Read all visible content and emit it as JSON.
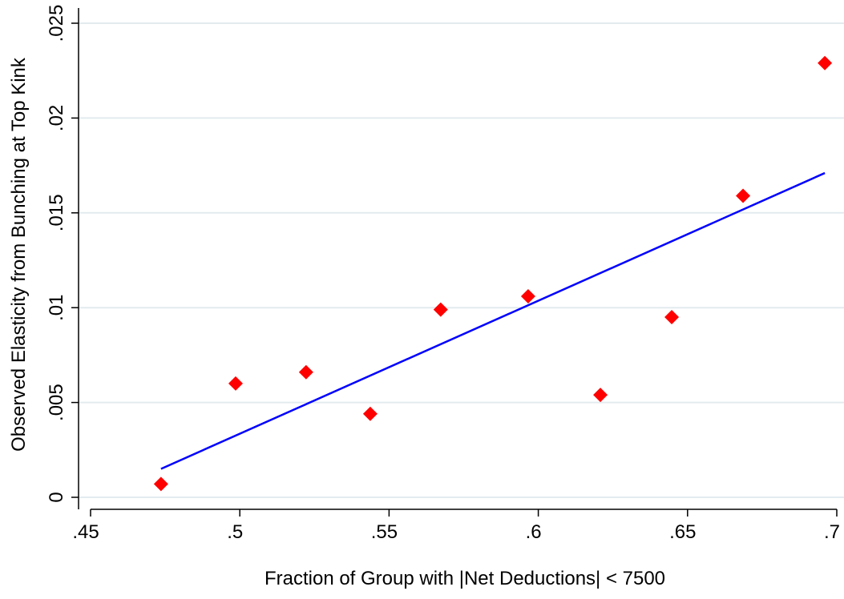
{
  "chart_data": {
    "type": "scatter",
    "x_label": "Fraction of Group with |Net Deductions| < 7500",
    "y_label": "Observed Elasticity from Bunching at Top Kink",
    "xlim": [
      0.45,
      0.7
    ],
    "xticks": [
      {
        "value": 0.45,
        "label": ".45"
      },
      {
        "value": 0.5,
        "label": ".5"
      },
      {
        "value": 0.55,
        "label": ".55"
      },
      {
        "value": 0.6,
        "label": ".6"
      },
      {
        "value": 0.65,
        "label": ".65"
      },
      {
        "value": 0.7,
        "label": ".7"
      }
    ],
    "ylim": [
      0,
      0.025
    ],
    "yticks": [
      0,
      {
        "value": 0.005,
        "label": ".005"
      },
      {
        "value": 0.01,
        "label": ".01"
      },
      {
        "value": 0.015,
        "label": ".015"
      },
      {
        "value": 0.02,
        "label": ".02"
      },
      {
        "value": 0.025,
        "label": ".025"
      }
    ],
    "grid": true,
    "series": [
      {
        "marker": "diamond",
        "color": "#ff0000",
        "x": [
          0.4736,
          0.4986,
          0.5222,
          0.5437,
          0.5673,
          0.5966,
          0.6208,
          0.6447,
          0.6686,
          0.696
        ],
        "values": [
          0.0007,
          0.006,
          0.0066,
          0.0044,
          0.0099,
          0.0106,
          0.0054,
          0.0095,
          0.0159,
          0.0229
        ]
      },
      {
        "marker": "line",
        "color": "#0000ff",
        "x": [
          0.4736,
          0.696
        ],
        "values": [
          0.0015,
          0.0171
        ]
      }
    ]
  }
}
